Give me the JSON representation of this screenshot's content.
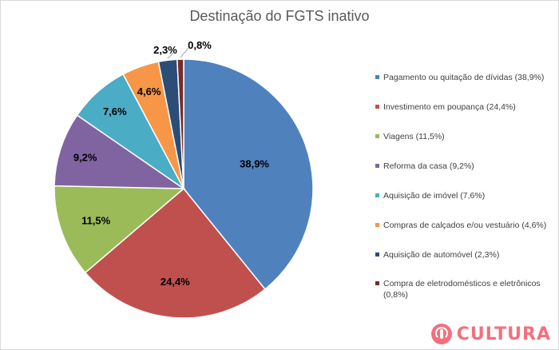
{
  "chart_data": {
    "type": "pie",
    "title": "Destinação do FGTS inativo",
    "slices": [
      {
        "label": "Pagamento ou quitação de dívidas (38,9%)",
        "value": 38.9,
        "display": "38,9%",
        "color": "#4f81bd"
      },
      {
        "label": "Investimento em poupança (24,4%)",
        "value": 24.4,
        "display": "24,4%",
        "color": "#c0504d"
      },
      {
        "label": "Viagens (11,5%)",
        "value": 11.5,
        "display": "11,5%",
        "color": "#9bbb59"
      },
      {
        "label": "Reforma da casa (9,2%)",
        "value": 9.2,
        "display": "9,2%",
        "color": "#8064a2"
      },
      {
        "label": "Aquisição de imóvel (7,6%)",
        "value": 7.6,
        "display": "7,6%",
        "color": "#4bacc6"
      },
      {
        "label": "Compras de calçados e/ou vestuário (4,6%)",
        "value": 4.6,
        "display": "4,6%",
        "color": "#f79646"
      },
      {
        "label": "Aquisição de automóvel (2,3%)",
        "value": 2.3,
        "display": "2,3%",
        "color": "#2c4d75"
      },
      {
        "label": "Compra de eletrodomésticos e eletrônicos (0,8%)",
        "value": 0.8,
        "display": "0,8%",
        "color": "#772c2a"
      }
    ],
    "legend_position": "right"
  },
  "brand": {
    "text": "CULTURA"
  }
}
